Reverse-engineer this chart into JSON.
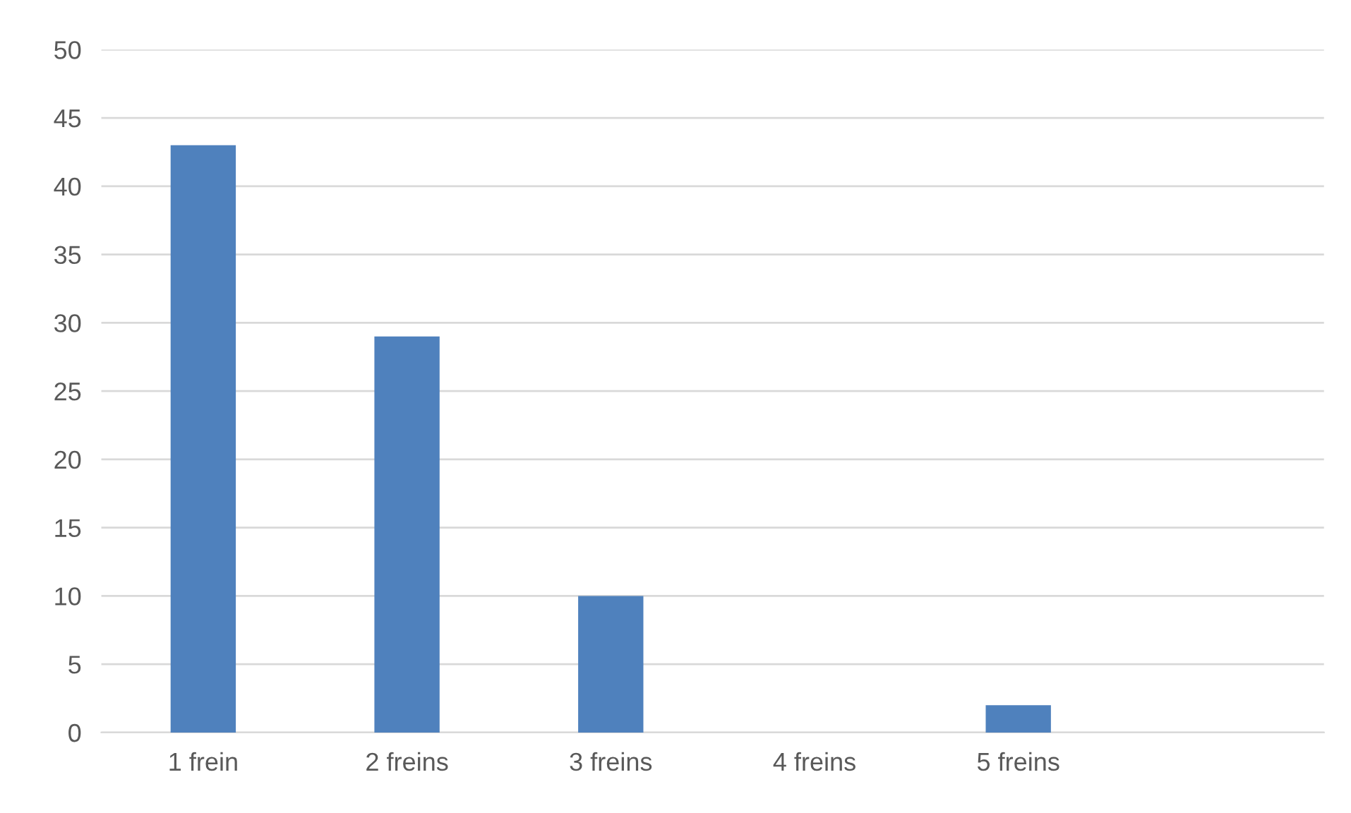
{
  "chart_data": {
    "type": "bar",
    "categories": [
      "1 frein",
      "2 freins",
      "3 freins",
      "4 freins",
      "5 freins",
      null
    ],
    "values": [
      43,
      29,
      10,
      0,
      2,
      null
    ],
    "color": "#4f81bd",
    "ylim": [
      0,
      50
    ],
    "yticks": [
      0,
      5,
      10,
      15,
      20,
      25,
      30,
      35,
      40,
      45,
      50
    ],
    "grid": "y",
    "legend": false
  }
}
